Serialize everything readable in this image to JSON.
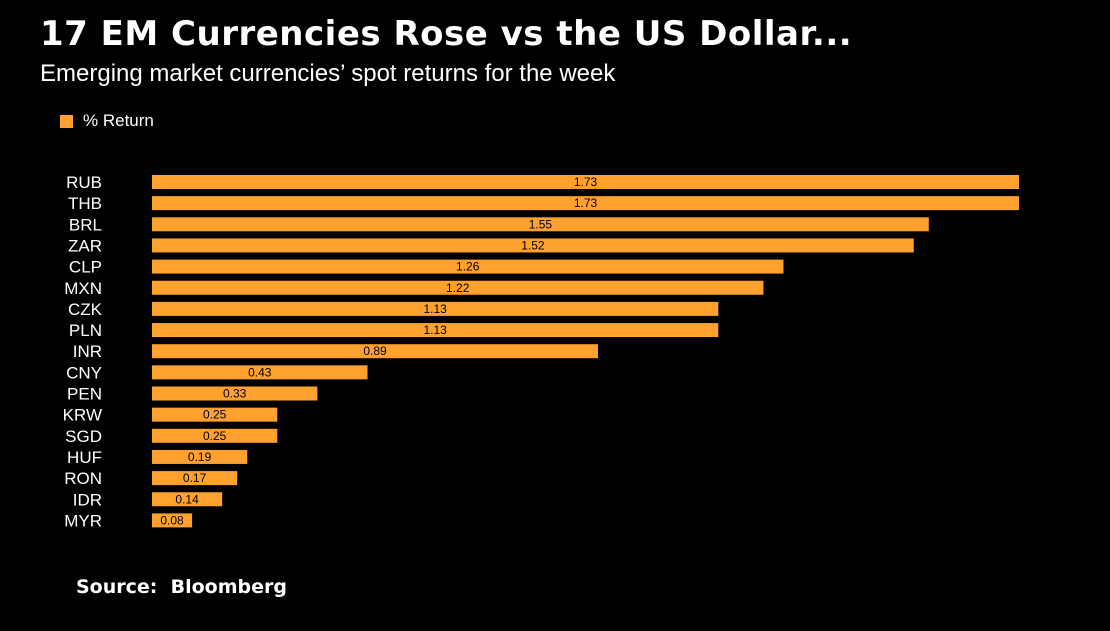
{
  "title": "17 EM Currencies Rose vs the US Dollar...",
  "subtitle": "Emerging market currencies’ spot returns for the week",
  "legend": {
    "label": "% Return",
    "color": "#FFA12E"
  },
  "source": "Source:  Bloomberg",
  "colors": {
    "background": "#000000",
    "bar": "#FFA12E",
    "text": "#FFFFFF",
    "data_label": "#000000"
  },
  "chart_data": {
    "type": "bar",
    "orientation": "horizontal",
    "categories": [
      "RUB",
      "THB",
      "BRL",
      "ZAR",
      "CLP",
      "MXN",
      "CZK",
      "PLN",
      "INR",
      "CNY",
      "PEN",
      "KRW",
      "SGD",
      "HUF",
      "RON",
      "IDR",
      "MYR"
    ],
    "series": [
      {
        "name": "% Return",
        "values": [
          1.73,
          1.73,
          1.55,
          1.52,
          1.26,
          1.22,
          1.13,
          1.13,
          0.89,
          0.43,
          0.33,
          0.25,
          0.25,
          0.19,
          0.17,
          0.14,
          0.08
        ],
        "labels": [
          "1.73",
          "1.73",
          "1.55",
          "1.52",
          "1.26",
          "1.22",
          "1.13",
          "1.13",
          "0.89",
          "0.43",
          "0.33",
          "0.25",
          "0.25",
          "0.19",
          "0.17",
          "0.14",
          "0.08"
        ]
      }
    ],
    "xlim": [
      0,
      1.73
    ],
    "grid": false,
    "legend_position": "top-left"
  }
}
